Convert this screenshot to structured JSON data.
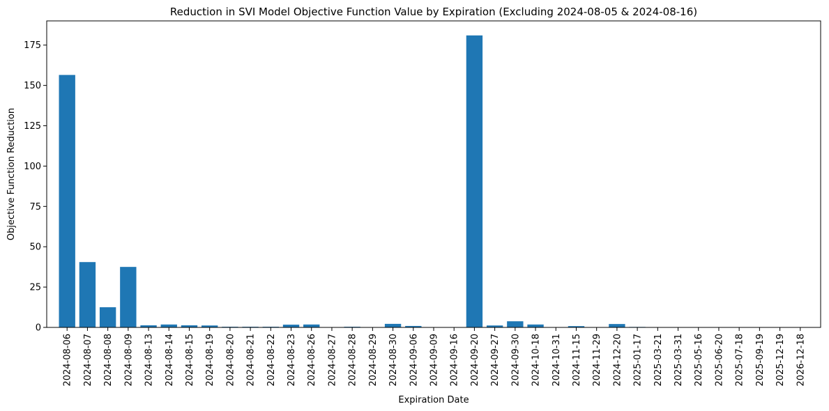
{
  "chart_data": {
    "type": "bar",
    "title": "Reduction in SVI Model Objective Function Value by Expiration (Excluding 2024-08-05 & 2024-08-16)",
    "xlabel": "Expiration Date",
    "ylabel": "Objective Function Reduction",
    "ylim": [
      0,
      190
    ],
    "yticks": [
      0,
      25,
      50,
      75,
      100,
      125,
      150,
      175
    ],
    "grid": false,
    "bar_color": "#1f77b4",
    "categories": [
      "2024-08-06",
      "2024-08-07",
      "2024-08-08",
      "2024-08-09",
      "2024-08-13",
      "2024-08-14",
      "2024-08-15",
      "2024-08-19",
      "2024-08-20",
      "2024-08-21",
      "2024-08-22",
      "2024-08-23",
      "2024-08-26",
      "2024-08-27",
      "2024-08-28",
      "2024-08-29",
      "2024-08-30",
      "2024-09-06",
      "2024-09-09",
      "2024-09-16",
      "2024-09-20",
      "2024-09-27",
      "2024-09-30",
      "2024-10-18",
      "2024-10-31",
      "2024-11-15",
      "2024-11-29",
      "2024-12-20",
      "2025-01-17",
      "2025-03-21",
      "2025-03-31",
      "2025-05-16",
      "2025-06-20",
      "2025-07-18",
      "2025-09-19",
      "2025-12-19",
      "2026-12-18"
    ],
    "values": [
      156.5,
      40.5,
      12.5,
      37.5,
      1.3,
      1.8,
      1.3,
      1.2,
      0.4,
      0.4,
      0.4,
      1.7,
      1.8,
      0.1,
      0.4,
      0.1,
      2.2,
      0.9,
      0.1,
      0.1,
      181.0,
      1.2,
      3.8,
      1.8,
      0.1,
      0.8,
      0.1,
      2.1,
      0.3,
      0.05,
      0.05,
      0.05,
      0.05,
      0.05,
      0.05,
      0.05,
      0.05
    ]
  }
}
